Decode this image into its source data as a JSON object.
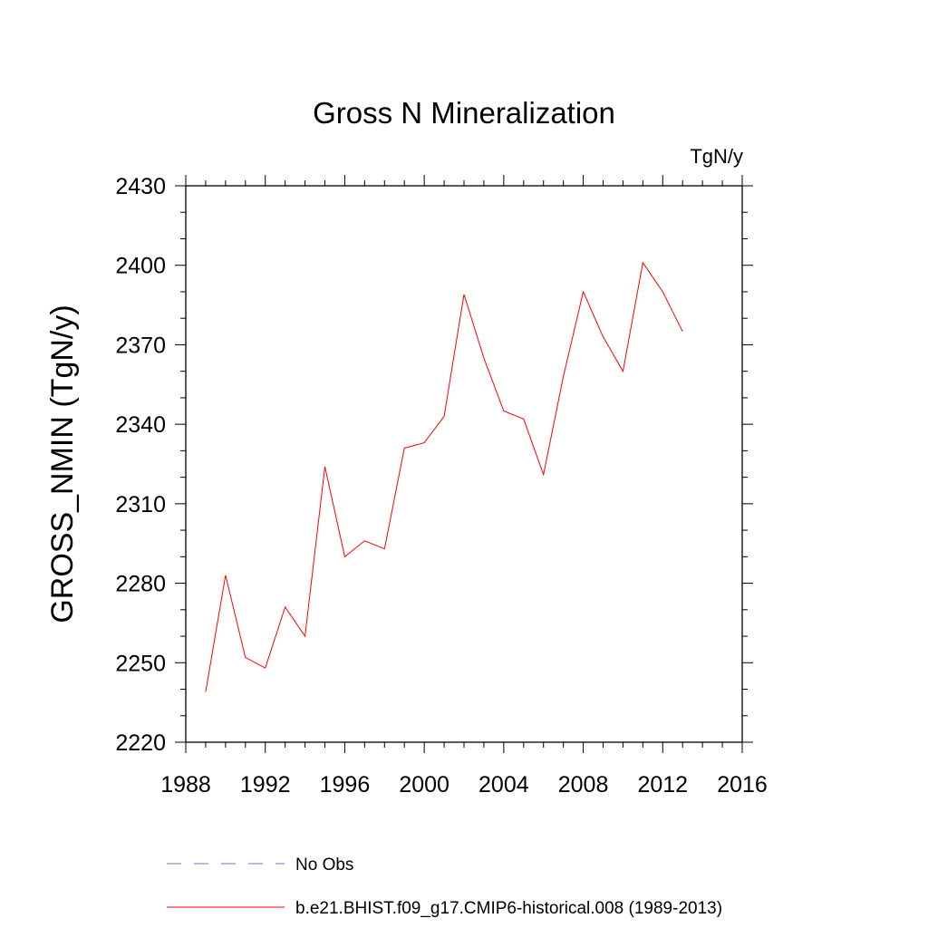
{
  "chart_data": {
    "type": "line",
    "title": "Gross N Mineralization",
    "units_label": "TgN/y",
    "ylabel": "GROSS_NMIN  (TgN/y)",
    "xlabel": "",
    "xlim": [
      1988,
      2016
    ],
    "ylim": [
      2220,
      2430
    ],
    "x_ticks": [
      1988,
      1992,
      1996,
      2000,
      2004,
      2008,
      2012,
      2016
    ],
    "y_ticks": [
      2220,
      2250,
      2280,
      2310,
      2340,
      2370,
      2400,
      2430
    ],
    "x_minor_step": 1,
    "y_minor_step": 10,
    "grid": false,
    "legend_position": "bottom",
    "series": [
      {
        "name": "b.e21.BHIST.f09_g17.CMIP6-historical.008 (1989-2013)",
        "color": "#ff0000",
        "style": "solid",
        "x": [
          1989,
          1990,
          1991,
          1992,
          1993,
          1994,
          1995,
          1996,
          1997,
          1998,
          1999,
          2000,
          2001,
          2002,
          2003,
          2004,
          2005,
          2006,
          2007,
          2008,
          2009,
          2010,
          2011,
          2012,
          2013
        ],
        "y": [
          2239,
          2283,
          2252,
          2248,
          2271,
          2260,
          2324,
          2290,
          2296,
          2293,
          2331,
          2333,
          2343,
          2389,
          2365,
          2345,
          2342,
          2321,
          2358,
          2390,
          2373,
          2360,
          2401,
          2390,
          2375
        ]
      }
    ],
    "legend": [
      {
        "label": "No Obs",
        "color": "#7b68c4",
        "style": "dashed"
      },
      {
        "label": "b.e21.BHIST.f09_g17.CMIP6-historical.008 (1989-2013)",
        "color": "#ff0000",
        "style": "solid"
      }
    ]
  }
}
